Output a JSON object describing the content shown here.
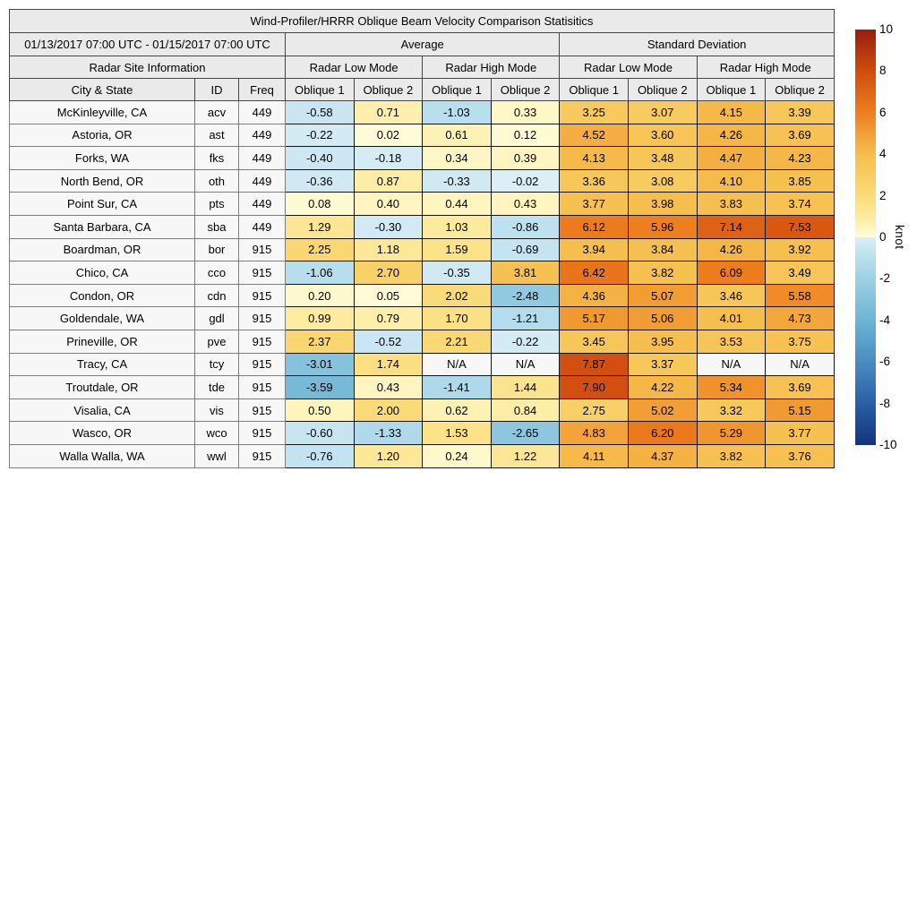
{
  "figure_title": "Wind-Profiler/HRRR Oblique Beam Velocity Comparison Statisitics",
  "table": {
    "date_range": "01/13/2017 07:00 UTC - 01/15/2017 07:00 UTC",
    "avg_label": "Average",
    "std_label": "Standard Deviation",
    "site_info_label": "Radar Site Information",
    "mode_labels": [
      "Radar Low Mode",
      "Radar High Mode",
      "Radar Low Mode",
      "Radar High Mode"
    ],
    "column_headers": [
      "City & State",
      "ID",
      "Freq",
      "Oblique 1",
      "Oblique 2",
      "Oblique 1",
      "Oblique 2",
      "Oblique 1",
      "Oblique 2",
      "Oblique 1",
      "Oblique 2"
    ],
    "na_text": "N/A"
  },
  "colorbar": {
    "label": "knot",
    "min": -10,
    "max": 10,
    "ticks": [
      "10",
      "8",
      "6",
      "4",
      "2",
      "0",
      "-2",
      "-4",
      "-6",
      "-8",
      "-10"
    ]
  },
  "colors": {
    "header_bg": "#eaeaea",
    "site_bg": "#f7f7f7",
    "na_bg": "#f7f7f7",
    "colormap_anchors": [
      [
        -10,
        "#14337f"
      ],
      [
        -8,
        "#2a5fa5"
      ],
      [
        -6,
        "#4a8cc2"
      ],
      [
        -4,
        "#6db4d4"
      ],
      [
        -2,
        "#9dd0e5"
      ],
      [
        -1,
        "#b9dfee"
      ],
      [
        -0.02,
        "#dceef6"
      ],
      [
        0.02,
        "#fefcd8"
      ],
      [
        1,
        "#fdeb9e"
      ],
      [
        2,
        "#fbdb79"
      ],
      [
        4,
        "#f6be4c"
      ],
      [
        6,
        "#ee7e1e"
      ],
      [
        8,
        "#d14c0e"
      ],
      [
        10,
        "#9a1c0d"
      ]
    ]
  },
  "chart_data": {
    "type": "heatmap",
    "title": "Wind-Profiler/HRRR Oblique Beam Velocity Comparison Statisitics",
    "subtitle": "01/13/2017 07:00 UTC - 01/15/2017 07:00 UTC",
    "colorbar_label": "knot",
    "value_range": [
      -10,
      10
    ],
    "colorbar_ticks": [
      10,
      8,
      6,
      4,
      2,
      0,
      -2,
      -4,
      -6,
      -8,
      -10
    ],
    "value_columns": [
      "Average / Radar Low Mode / Oblique 1",
      "Average / Radar Low Mode / Oblique 2",
      "Average / Radar High Mode / Oblique 1",
      "Average / Radar High Mode / Oblique 2",
      "Standard Deviation / Radar Low Mode / Oblique 1",
      "Standard Deviation / Radar Low Mode / Oblique 2",
      "Standard Deviation / Radar High Mode / Oblique 1",
      "Standard Deviation / Radar High Mode / Oblique 2"
    ],
    "rows": [
      {
        "city": "McKinleyville, CA",
        "id": "acv",
        "freq": "449",
        "values": [
          "-0.58",
          "0.71",
          "-1.03",
          "0.33",
          "3.25",
          "3.07",
          "4.15",
          "3.39"
        ]
      },
      {
        "city": "Astoria, OR",
        "id": "ast",
        "freq": "449",
        "values": [
          "-0.22",
          "0.02",
          "0.61",
          "0.12",
          "4.52",
          "3.60",
          "4.26",
          "3.69"
        ]
      },
      {
        "city": "Forks, WA",
        "id": "fks",
        "freq": "449",
        "values": [
          "-0.40",
          "-0.18",
          "0.34",
          "0.39",
          "4.13",
          "3.48",
          "4.47",
          "4.23"
        ]
      },
      {
        "city": "North Bend, OR",
        "id": "oth",
        "freq": "449",
        "values": [
          "-0.36",
          "0.87",
          "-0.33",
          "-0.02",
          "3.36",
          "3.08",
          "4.10",
          "3.85"
        ]
      },
      {
        "city": "Point Sur, CA",
        "id": "pts",
        "freq": "449",
        "values": [
          "0.08",
          "0.40",
          "0.44",
          "0.43",
          "3.77",
          "3.98",
          "3.83",
          "3.74"
        ]
      },
      {
        "city": "Santa Barbara, CA",
        "id": "sba",
        "freq": "449",
        "values": [
          "1.29",
          "-0.30",
          "1.03",
          "-0.86",
          "6.12",
          "5.96",
          "7.14",
          "7.53"
        ]
      },
      {
        "city": "Boardman, OR",
        "id": "bor",
        "freq": "915",
        "values": [
          "2.25",
          "1.18",
          "1.59",
          "-0.69",
          "3.94",
          "3.84",
          "4.26",
          "3.92"
        ]
      },
      {
        "city": "Chico, CA",
        "id": "cco",
        "freq": "915",
        "values": [
          "-1.06",
          "2.70",
          "-0.35",
          "3.81",
          "6.42",
          "3.82",
          "6.09",
          "3.49"
        ]
      },
      {
        "city": "Condon, OR",
        "id": "cdn",
        "freq": "915",
        "values": [
          "0.20",
          "0.05",
          "2.02",
          "-2.48",
          "4.36",
          "5.07",
          "3.46",
          "5.58"
        ]
      },
      {
        "city": "Goldendale, WA",
        "id": "gdl",
        "freq": "915",
        "values": [
          "0.99",
          "0.79",
          "1.70",
          "-1.21",
          "5.17",
          "5.06",
          "4.01",
          "4.73"
        ]
      },
      {
        "city": "Prineville, OR",
        "id": "pve",
        "freq": "915",
        "values": [
          "2.37",
          "-0.52",
          "2.21",
          "-0.22",
          "3.45",
          "3.95",
          "3.53",
          "3.75"
        ]
      },
      {
        "city": "Tracy, CA",
        "id": "tcy",
        "freq": "915",
        "values": [
          "-3.01",
          "1.74",
          "N/A",
          "N/A",
          "7.87",
          "3.37",
          "N/A",
          "N/A"
        ]
      },
      {
        "city": "Troutdale, OR",
        "id": "tde",
        "freq": "915",
        "values": [
          "-3.59",
          "0.43",
          "-1.41",
          "1.44",
          "7.90",
          "4.22",
          "5.34",
          "3.69"
        ]
      },
      {
        "city": "Visalia, CA",
        "id": "vis",
        "freq": "915",
        "values": [
          "0.50",
          "2.00",
          "0.62",
          "0.84",
          "2.75",
          "5.02",
          "3.32",
          "5.15"
        ]
      },
      {
        "city": "Wasco, OR",
        "id": "wco",
        "freq": "915",
        "values": [
          "-0.60",
          "-1.33",
          "1.53",
          "-2.65",
          "4.83",
          "6.20",
          "5.29",
          "3.77"
        ]
      },
      {
        "city": "Walla Walla, WA",
        "id": "wwl",
        "freq": "915",
        "values": [
          "-0.76",
          "1.20",
          "0.24",
          "1.22",
          "4.11",
          "4.37",
          "3.82",
          "3.76"
        ]
      }
    ]
  }
}
